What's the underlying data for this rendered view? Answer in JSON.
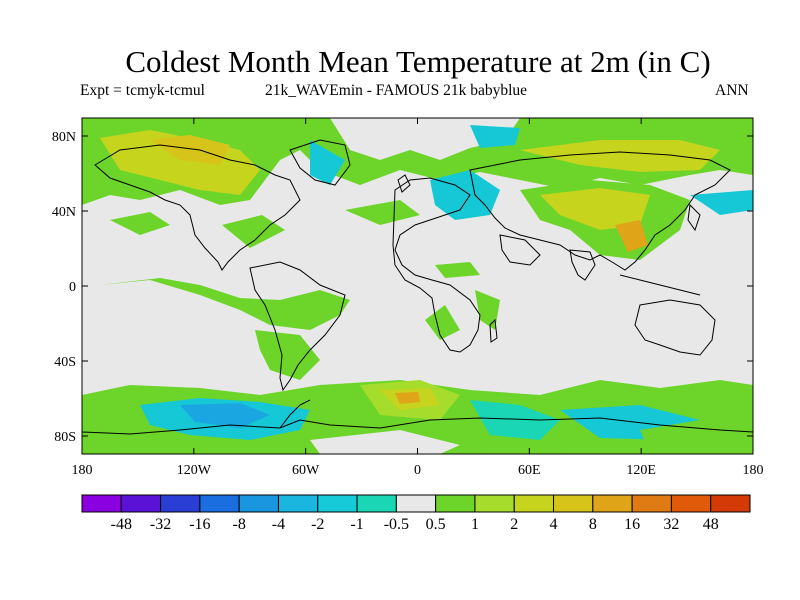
{
  "title": "Coldest Month Mean Temperature at 2m (in C)",
  "subtitle_left": "Expt = tcmyk-tcmul",
  "subtitle_center": "21k_WAVEmin - FAMOUS 21k babyblue",
  "subtitle_right": "ANN",
  "colors": {
    "neutral": "#e8e8e8",
    "green": "#6dd42a",
    "light_green": "#a6dc2c",
    "yellow_green": "#c6d41e",
    "yellow": "#d6c41a",
    "orange": "#e0a418",
    "teal": "#1ad6b4",
    "cyan": "#16c8d6",
    "blue": "#1aa6e0"
  },
  "map": {
    "lat_ticks": [
      "80N",
      "40N",
      "0",
      "40S",
      "80S"
    ],
    "lon_ticks": [
      "180",
      "120W",
      "60W",
      "0",
      "60E",
      "120E",
      "180"
    ]
  },
  "colorbar": {
    "labels": [
      "-48",
      "-32",
      "-16",
      "-8",
      "-4",
      "-2",
      "-1",
      "-0.5",
      "0.5",
      "1",
      "2",
      "4",
      "8",
      "16",
      "32",
      "48"
    ],
    "colors": [
      "#8a00e0",
      "#5a12d6",
      "#2a3ed6",
      "#1a6ee0",
      "#1a96e0",
      "#1ab6e0",
      "#16cad8",
      "#1ad6b4",
      "#e8e8e8",
      "#6dd42a",
      "#a6dc2c",
      "#c6d41e",
      "#d6c41a",
      "#e0a418",
      "#e07a12",
      "#e05a0a",
      "#d43a06"
    ]
  }
}
